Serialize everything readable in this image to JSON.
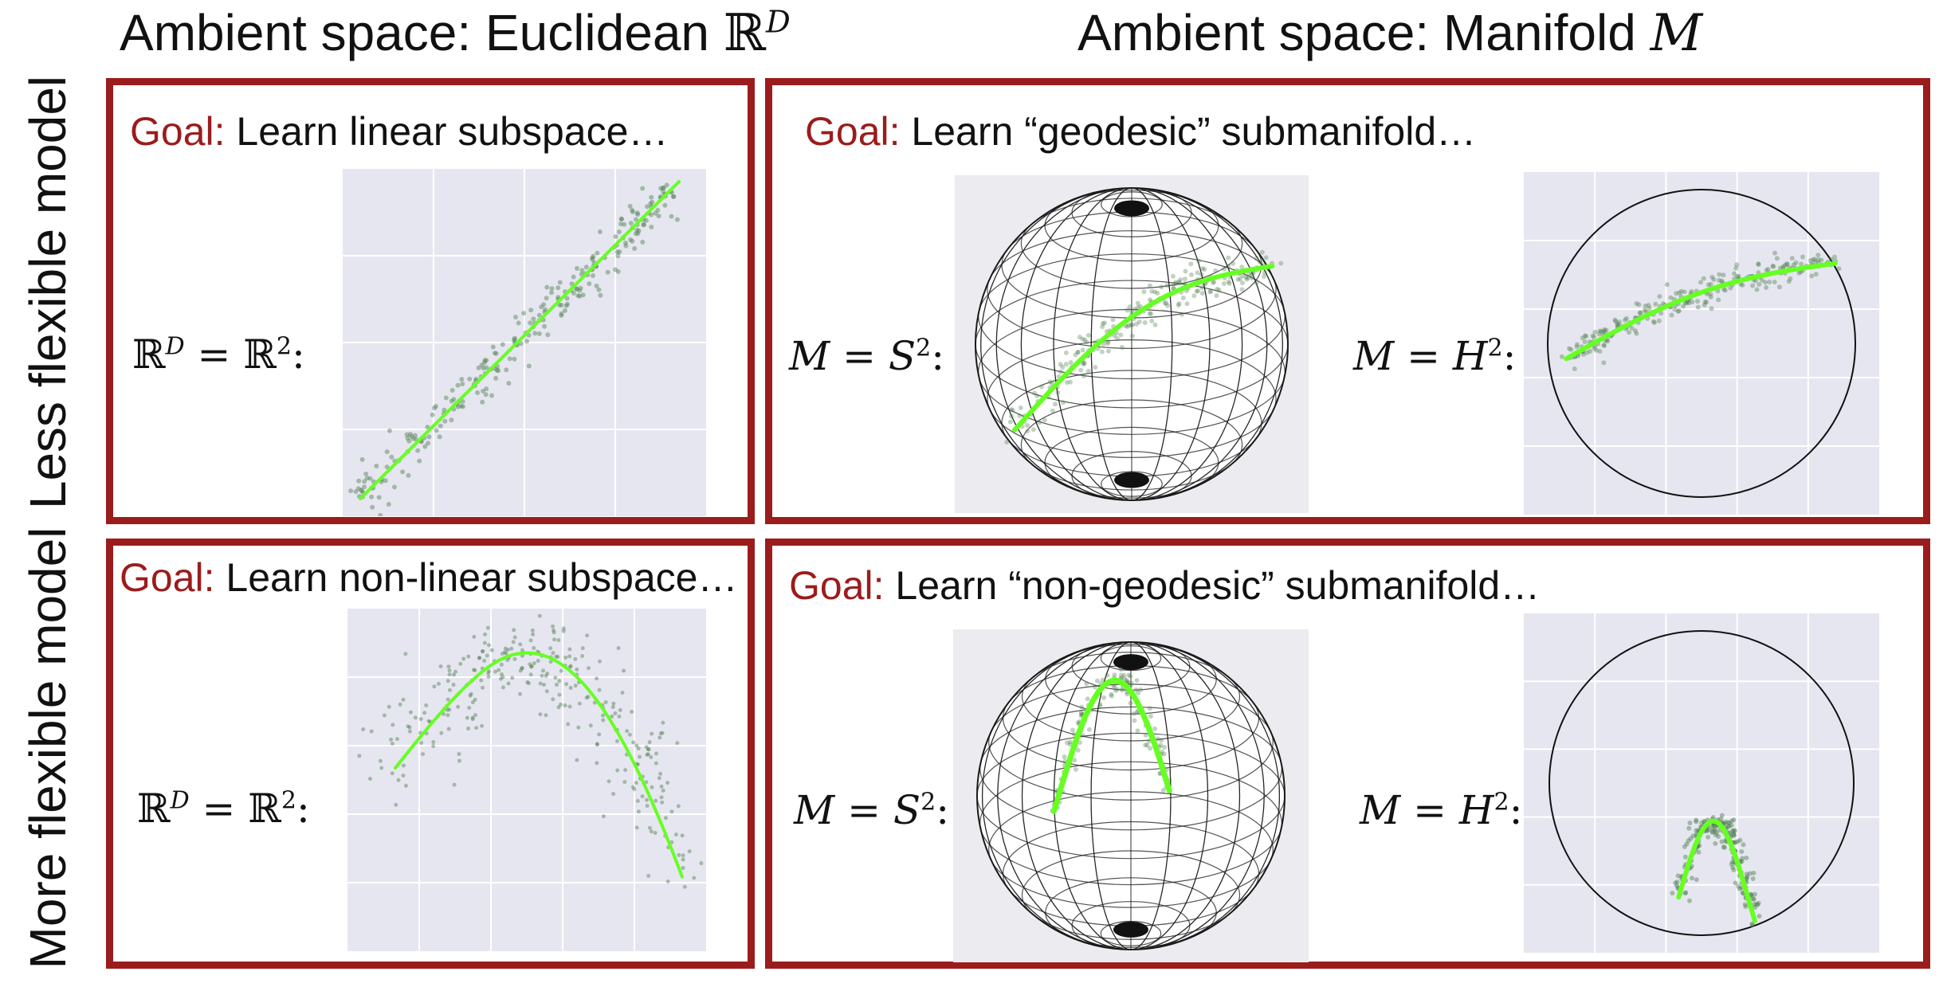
{
  "headers": {
    "euclidean_prefix": "Ambient space: Euclidean ",
    "euclidean_symbol": "ℝ",
    "euclidean_sup": "D",
    "manifold_prefix": "Ambient space: Manifold ",
    "manifold_symbol": "M"
  },
  "rows": {
    "top": "Less flexible model",
    "bottom": "More flexible model"
  },
  "goal_keyword": "Goal:",
  "goals": {
    "linear": "Learn linear subspace…",
    "geodesic": "Learn “geodesic” submanifold…",
    "nonlinear": "Learn non-linear subspace…",
    "nongeodesic": "Learn “non-geodesic” submanifold…"
  },
  "math": {
    "euclid_lhs": "ℝ",
    "euclid_lhs_sup": "D",
    "euclid_eq": " = ℝ",
    "euclid_rhs_sup": "2",
    "euclid_colon": ":",
    "sphere_m": "M",
    "sphere_eq": " = ",
    "sphere_s": "S",
    "sphere_sup": "2",
    "sphere_colon": ":",
    "hyper_m": "M",
    "hyper_eq": " = ",
    "hyper_h": "H",
    "hyper_sup": "2",
    "hyper_colon": ":"
  },
  "colors": {
    "frame": "#9b1c1c",
    "goal_keyword": "#9b1c1c",
    "plot_bg": "#e6e6f0",
    "grid": "#ffffff",
    "fit": "#66ff22",
    "points": "#4f7f4f",
    "sphere_wire": "#1a1a1a"
  }
}
